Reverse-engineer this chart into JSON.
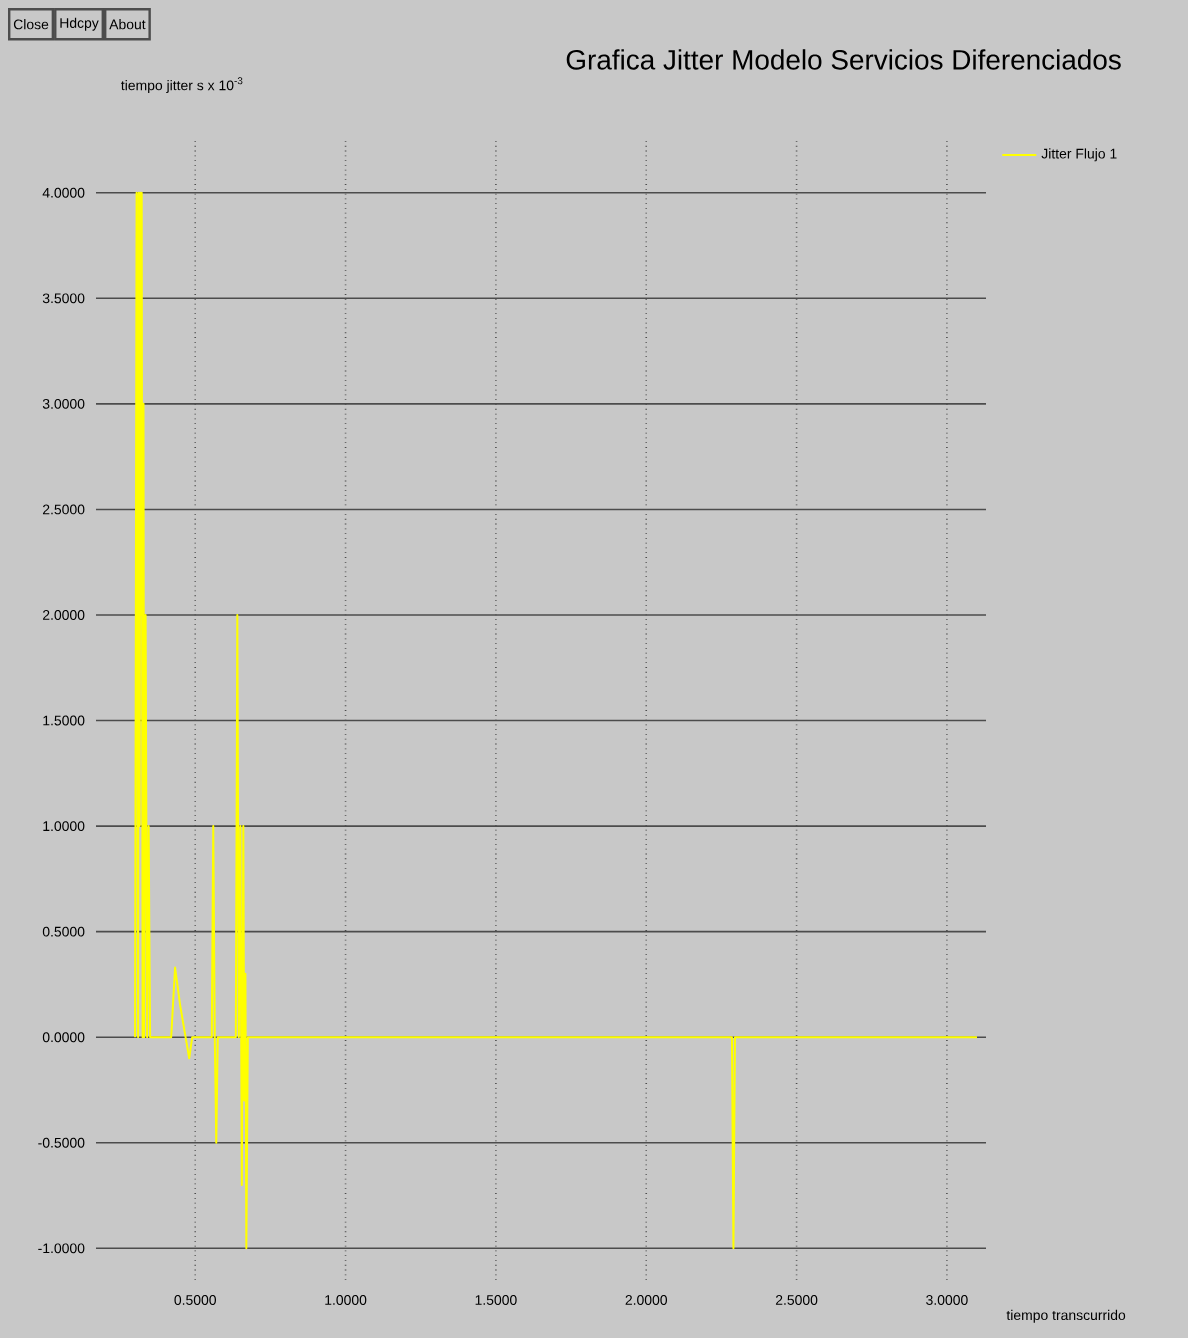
{
  "chart_data": {
    "type": "line",
    "title": "Grafica Jitter Modelo Servicios Diferenciados",
    "xlabel": "tiempo transcurrido",
    "ylabel": "tiempo jitter s x 10$^{-3}$",
    "annotations": [
      "Close",
      "Hdcpy",
      "About"
    ],
    "xlim": [
      0.17,
      3.13
    ],
    "ylim": [
      -1.15,
      4.25
    ],
    "xticks": [
      {
        "value": 0.5,
        "label": "0.5000"
      },
      {
        "value": 1.0,
        "label": "1.0000"
      },
      {
        "value": 1.5,
        "label": "1.5000"
      },
      {
        "value": 2.0,
        "label": "2.0000"
      },
      {
        "value": 2.5,
        "label": "2.5000"
      },
      {
        "value": 3.0,
        "label": "3.0000"
      }
    ],
    "yticks": [
      {
        "value": -1.0,
        "label": "-1.0000"
      },
      {
        "value": -0.5,
        "label": "-0.5000"
      },
      {
        "value": 0.0,
        "label": "0.0000"
      },
      {
        "value": 0.5,
        "label": "0.5000"
      },
      {
        "value": 1.0,
        "label": "1.0000"
      },
      {
        "value": 1.5,
        "label": "1.5000"
      },
      {
        "value": 2.0,
        "label": "2.0000"
      },
      {
        "value": 2.5,
        "label": "2.5000"
      },
      {
        "value": 3.0,
        "label": "3.0000"
      },
      {
        "value": 3.5,
        "label": "3.5000"
      },
      {
        "value": 4.0,
        "label": "4.0000"
      }
    ],
    "grid": true,
    "legend": "top right",
    "series": [
      {
        "name": "Jitter Flujo 1",
        "color": "#ffff00",
        "x": [
          0.3,
          0.305,
          0.31,
          0.312,
          0.315,
          0.318,
          0.32,
          0.322,
          0.325,
          0.328,
          0.33,
          0.335,
          0.34,
          0.345,
          0.35,
          0.42,
          0.433,
          0.45,
          0.48,
          0.49,
          0.555,
          0.56,
          0.565,
          0.57,
          0.575,
          0.635,
          0.64,
          0.645,
          0.65,
          0.655,
          0.66,
          0.663,
          0.667,
          0.67,
          0.675,
          2.285,
          2.29,
          2.295,
          3.1
        ],
        "values": [
          0,
          4.0,
          0,
          4.0,
          1.0,
          4.0,
          2.0,
          4.0,
          0,
          3.0,
          0,
          2.0,
          0,
          1.0,
          0,
          0,
          0.33,
          0.15,
          -0.1,
          0,
          0,
          1.0,
          0,
          -0.5,
          0,
          0,
          2.0,
          0,
          1.0,
          -0.7,
          1.0,
          -0.3,
          0.3,
          -1.0,
          0,
          0,
          -1.0,
          0,
          0
        ]
      }
    ]
  }
}
